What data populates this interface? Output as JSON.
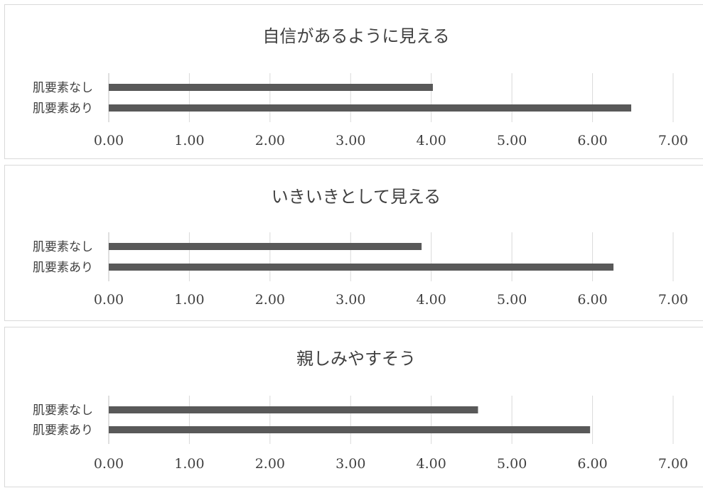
{
  "chart_data": [
    {
      "type": "bar",
      "orientation": "horizontal",
      "title": "自信があるように見える",
      "categories": [
        "肌要素なし",
        "肌要素あり"
      ],
      "values": [
        4.02,
        6.48
      ],
      "xlim": [
        0,
        7
      ],
      "ticks": [
        "0.00",
        "1.00",
        "2.00",
        "3.00",
        "4.00",
        "5.00",
        "6.00",
        "7.00"
      ],
      "grid": true,
      "bar_color": "#595959"
    },
    {
      "type": "bar",
      "orientation": "horizontal",
      "title": "いきいきとして見える",
      "categories": [
        "肌要素なし",
        "肌要素あり"
      ],
      "values": [
        3.88,
        6.26
      ],
      "xlim": [
        0,
        7
      ],
      "ticks": [
        "0.00",
        "1.00",
        "2.00",
        "3.00",
        "4.00",
        "5.00",
        "6.00",
        "7.00"
      ],
      "grid": true,
      "bar_color": "#595959"
    },
    {
      "type": "bar",
      "orientation": "horizontal",
      "title": "親しみやすそう",
      "categories": [
        "肌要素なし",
        "肌要素あり"
      ],
      "values": [
        4.58,
        5.97
      ],
      "xlim": [
        0,
        7
      ],
      "ticks": [
        "0.00",
        "1.00",
        "2.00",
        "3.00",
        "4.00",
        "5.00",
        "6.00",
        "7.00"
      ],
      "grid": true,
      "bar_color": "#595959"
    }
  ]
}
